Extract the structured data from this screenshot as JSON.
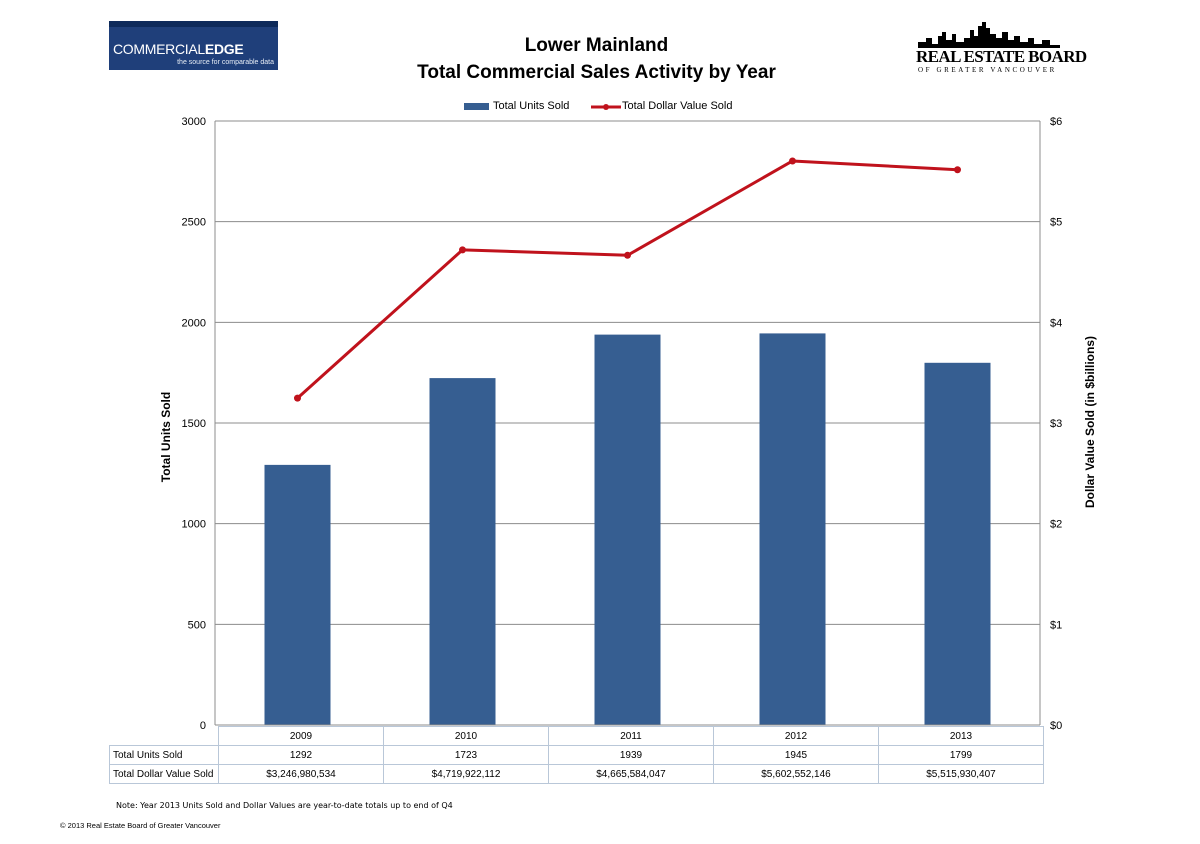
{
  "logos": {
    "left": {
      "brand_regular": "COMMERCIAL",
      "brand_bold": "EDGE",
      "tagline": "the source for comparable data"
    },
    "right": {
      "name": "REAL ESTATE BOARD",
      "sub": "OF GREATER VANCOUVER"
    }
  },
  "chart_data": {
    "type": "bar",
    "title": "Lower Mainland",
    "subtitle": "Total Commercial Sales Activity by Year",
    "categories": [
      "2009",
      "2010",
      "2011",
      "2012",
      "2013"
    ],
    "series": [
      {
        "name": "Total Units Sold",
        "type": "bar",
        "axis": "left",
        "color": "#365e91",
        "values": [
          1292,
          1723,
          1939,
          1945,
          1799
        ]
      },
      {
        "name": "Total Dollar Value Sold",
        "type": "line",
        "axis": "right",
        "color": "#c0121c",
        "values": [
          3.247,
          4.72,
          4.666,
          5.603,
          5.516
        ]
      }
    ],
    "ylabel": "Total Units Sold",
    "ylabel_right": "Dollar Value Sold (in $billions)",
    "ylim": [
      0,
      3000
    ],
    "ylim_right": [
      0,
      6
    ],
    "yticks": [
      "0",
      "500",
      "1000",
      "1500",
      "2000",
      "2500",
      "3000"
    ],
    "yticks_right": [
      "$0",
      "$1",
      "$2",
      "$3",
      "$4",
      "$5",
      "$6"
    ],
    "grid": true,
    "legend": "top-center"
  },
  "table": {
    "rows": [
      {
        "label": "Total Units Sold",
        "values": [
          "1292",
          "1723",
          "1939",
          "1945",
          "1799"
        ]
      },
      {
        "label": "Total Dollar Value Sold",
        "values": [
          "$3,246,980,534",
          "$4,719,922,112",
          "$4,665,584,047",
          "$5,602,552,146",
          "$5,515,930,407"
        ]
      }
    ]
  },
  "note": "Note: Year 2013 Units Sold and Dollar Values are year-to-date totals up to end of Q4",
  "copyright": "© 2013 Real Estate Board of Greater Vancouver"
}
